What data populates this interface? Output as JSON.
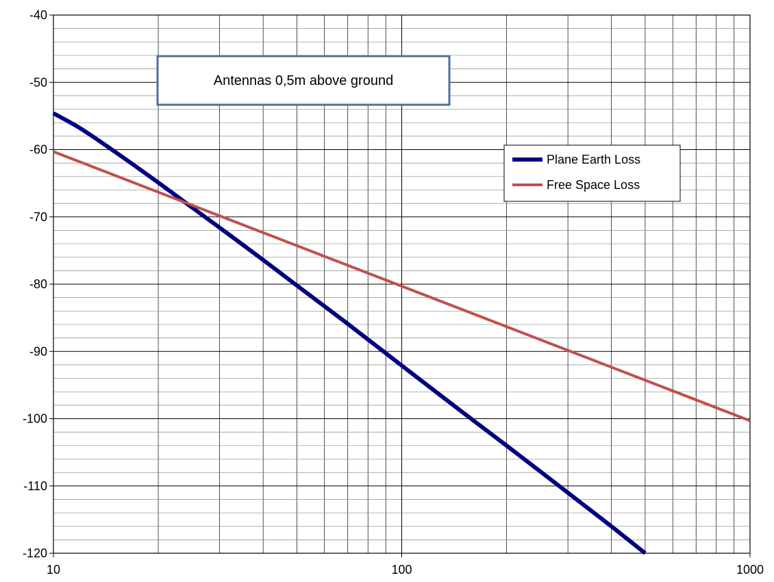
{
  "chart_data": {
    "type": "line",
    "title": "",
    "xlabel": "",
    "ylabel": "",
    "x_scale": "log",
    "xlim": [
      10,
      1000
    ],
    "ylim": [
      -120,
      -40
    ],
    "x_ticks": [
      "10",
      "100",
      "1000"
    ],
    "y_ticks": [
      "-40",
      "-50",
      "-60",
      "-70",
      "-80",
      "-90",
      "-100",
      "-110",
      "-120"
    ],
    "grid": true,
    "legend_position": "right",
    "annotation": "Antennas 0,5m above ground",
    "series": [
      {
        "name": "Plane Earth Loss",
        "color": "#000080",
        "x": [
          10,
          12,
          15,
          20,
          25,
          30,
          40,
          50,
          70,
          100,
          150,
          200,
          300,
          400,
          500
        ],
        "y": [
          -54.6,
          -56.9,
          -60.3,
          -64.9,
          -68.6,
          -71.6,
          -76.4,
          -80.2,
          -85.9,
          -92.1,
          -99.1,
          -104.0,
          -111.0,
          -116.0,
          -120.0
        ]
      },
      {
        "name": "Free Space Loss",
        "color": "#C0504D",
        "x": [
          10,
          1000
        ],
        "y": [
          -60.3,
          -100.3
        ]
      }
    ]
  }
}
